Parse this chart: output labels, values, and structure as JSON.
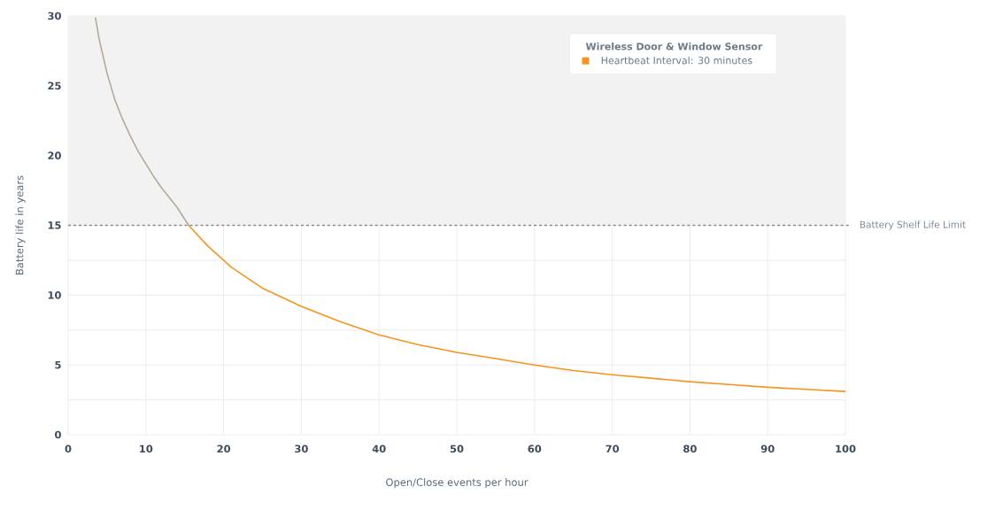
{
  "chart_data": {
    "type": "line",
    "xlabel": "Open/Close events per hour",
    "ylabel": "Battery life in years",
    "legend_title": "Wireless Door & Window Sensor",
    "xlim": [
      0,
      100
    ],
    "ylim": [
      0,
      30
    ],
    "xticks": [
      0,
      10,
      20,
      30,
      40,
      50,
      60,
      70,
      80,
      90,
      100
    ],
    "yticks": [
      0,
      {
        "value": 2.5,
        "label": null
      },
      5,
      {
        "value": 7.5,
        "label": null
      },
      10,
      {
        "value": 12.5,
        "label": null
      },
      15,
      {
        "value": 17.5,
        "label": null
      },
      20,
      {
        "value": 22.5,
        "label": null
      },
      25,
      {
        "value": 27.5,
        "label": null
      },
      30
    ],
    "grid": true,
    "legend": "top right",
    "line_style": "solid",
    "series": [
      {
        "color": "#b5aa9c",
        "x": [
          3.5,
          4,
          5,
          6,
          7,
          8,
          9,
          10,
          11,
          12,
          13,
          14,
          15.5
        ],
        "values": [
          29.9,
          28.3,
          25.9,
          24.0,
          22.6,
          21.4,
          20.3,
          19.4,
          18.5,
          17.7,
          17.0,
          16.3,
          15.0
        ]
      },
      {
        "name": "Heartbeat Interval: 30 minutes",
        "color": "#f7941d",
        "x": [
          15.5,
          18,
          20,
          21,
          25,
          30,
          35,
          40,
          45,
          50,
          55,
          60,
          65,
          70,
          75,
          80,
          85,
          90,
          95,
          100
        ],
        "values": [
          15.0,
          13.5,
          12.5,
          12.0,
          10.5,
          9.2,
          8.1,
          7.15,
          6.45,
          5.9,
          5.45,
          5.0,
          4.6,
          4.3,
          4.05,
          3.8,
          3.6,
          3.4,
          3.25,
          3.1
        ]
      }
    ],
    "bands": [
      {
        "axis": "y",
        "from": 15,
        "to": 30,
        "color": "#f2f2f2"
      }
    ],
    "ref_lines": [
      {
        "axis": "y",
        "value": 15,
        "label": "Battery Shelf Life Limit",
        "color": "#8a8a8a",
        "line_style": "dashed"
      }
    ]
  }
}
